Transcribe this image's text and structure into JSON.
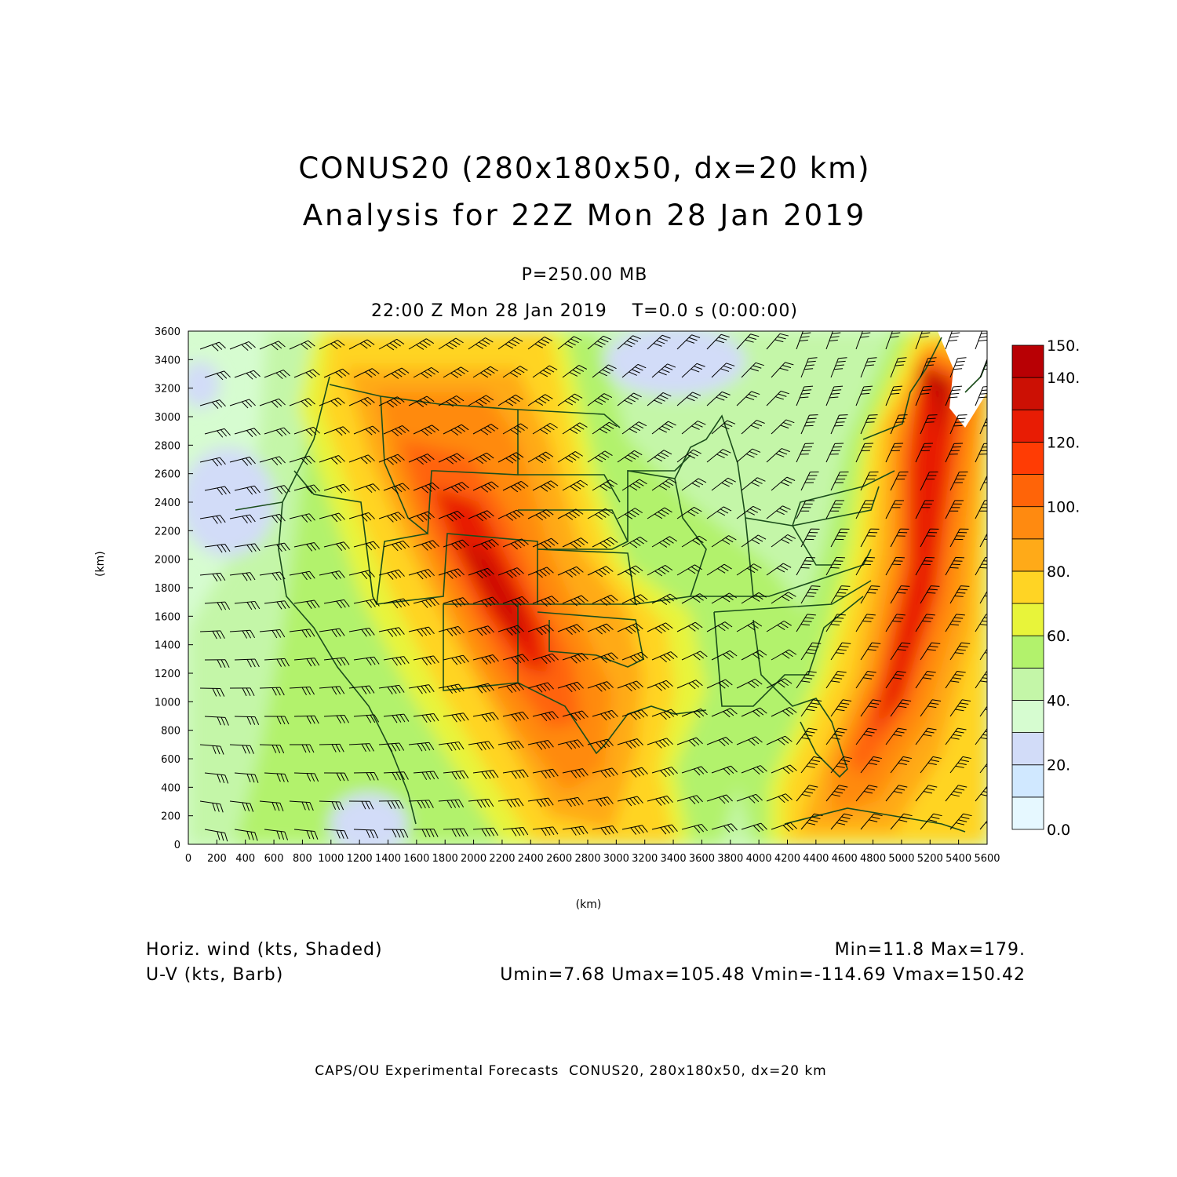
{
  "header": {
    "title_line1": "CONUS20 (280x180x50, dx=20 km)",
    "title_line2": "Analysis for 22Z Mon 28 Jan 2019",
    "level": "P=250.00 MB",
    "valid_time": "22:00 Z Mon 28 Jan 2019    T=0.0 s (0:00:00)"
  },
  "axes": {
    "xlabel": "(km)",
    "ylabel": "(km)",
    "x_ticks": [
      "0",
      "200",
      "400",
      "600",
      "800",
      "1000",
      "1200",
      "1400",
      "1600",
      "1800",
      "2000",
      "2200",
      "2400",
      "2600",
      "2800",
      "3000",
      "3200",
      "3400",
      "3600",
      "3800",
      "4000",
      "4200",
      "4400",
      "4600",
      "4800",
      "5000",
      "5200",
      "5400",
      "5600"
    ],
    "y_ticks": [
      "0",
      "200",
      "400",
      "600",
      "800",
      "1000",
      "1200",
      "1400",
      "1600",
      "1800",
      "2000",
      "2200",
      "2400",
      "2600",
      "2800",
      "3000",
      "3200",
      "3400",
      "3600"
    ],
    "xlim": [
      0,
      5600
    ],
    "ylim": [
      0,
      3600
    ]
  },
  "colorbar": {
    "labels": [
      "0.0",
      "20.",
      "40.",
      "60.",
      "80.",
      "100.",
      "120.",
      "140.",
      "150."
    ],
    "colors": [
      "#e6f8ff",
      "#d0e8ff",
      "#d2dcf8",
      "#d6fcd0",
      "#c4f6a8",
      "#b2f26c",
      "#e8f43a",
      "#ffd424",
      "#ffaa18",
      "#ff8a10",
      "#ff6408",
      "#ff3c04",
      "#e81c04",
      "#cc1004",
      "#b80004"
    ]
  },
  "footer": {
    "left_line1": "Horiz. wind (kts, Shaded)",
    "left_line2": "U-V (kts, Barb)",
    "right_line1": "Min=11.8 Max=179.",
    "right_line2": "Umin=7.68 Umax=105.48 Vmin=-114.69 Vmax=150.42",
    "credit": "CAPS/OU Experimental Forecasts  CONUS20, 280x180x50, dx=20 km"
  },
  "colors": {
    "border": "#1b4d1b",
    "axis": "#000000"
  }
}
